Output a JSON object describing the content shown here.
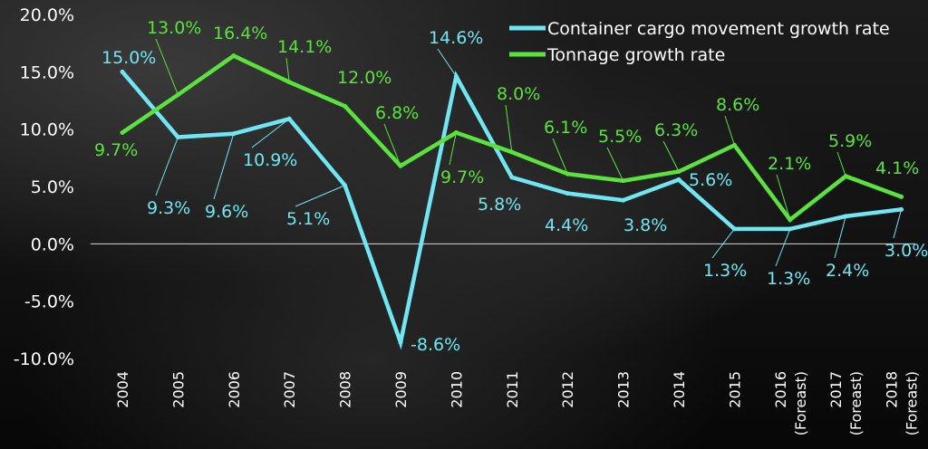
{
  "chart_data": {
    "type": "line",
    "categories": [
      "2004",
      "2005",
      "2006",
      "2007",
      "2008",
      "2009",
      "2010",
      "2011",
      "2012",
      "2013",
      "2014",
      "2015",
      "2016 (Foreast)",
      "2017 (Foreast)",
      "2018 (Foreast)"
    ],
    "category_lines": [
      [
        "2004"
      ],
      [
        "2005"
      ],
      [
        "2006"
      ],
      [
        "2007"
      ],
      [
        "2008"
      ],
      [
        "2009"
      ],
      [
        "2010"
      ],
      [
        "2011"
      ],
      [
        "2012"
      ],
      [
        "2013"
      ],
      [
        "2014"
      ],
      [
        "2015"
      ],
      [
        "2016",
        "(Foreast)"
      ],
      [
        "2017",
        "(Foreast)"
      ],
      [
        "2018",
        "(Foreast)"
      ]
    ],
    "series": [
      {
        "name": "Container cargo movement growth rate",
        "color": "#6fe6f2",
        "values": [
          15.0,
          9.3,
          9.6,
          10.9,
          5.1,
          -8.6,
          14.6,
          5.8,
          4.4,
          3.8,
          5.6,
          1.3,
          1.3,
          2.4,
          3.0
        ],
        "labels": [
          "15.0%",
          "9.3%",
          "9.6%",
          "10.9%",
          "5.1%",
          "-8.6%",
          "14.6%",
          "5.8%",
          "4.4%",
          "3.8%",
          "5.6%",
          "1.3%",
          "1.3%",
          "2.4%",
          "3.0%"
        ]
      },
      {
        "name": "Tonnage growth rate",
        "color": "#5be23c",
        "values": [
          9.7,
          13.0,
          16.4,
          14.1,
          12.0,
          6.8,
          9.7,
          8.0,
          6.1,
          5.5,
          6.3,
          8.6,
          2.1,
          5.9,
          4.1
        ],
        "labels": [
          "9.7%",
          "13.0%",
          "16.4%",
          "14.1%",
          "12.0%",
          "6.8%",
          "9.7%",
          "8.0%",
          "6.1%",
          "5.5%",
          "6.3%",
          "8.6%",
          "2.1%",
          "5.9%",
          "4.1%"
        ]
      }
    ],
    "y_ticks": [
      "20.0%",
      "15.0%",
      "10.0%",
      "5.0%",
      "0.0%",
      "-5.0%",
      "-10.0%"
    ],
    "ylim": [
      -10,
      20
    ],
    "grid": false,
    "legend_position": "top-right"
  }
}
